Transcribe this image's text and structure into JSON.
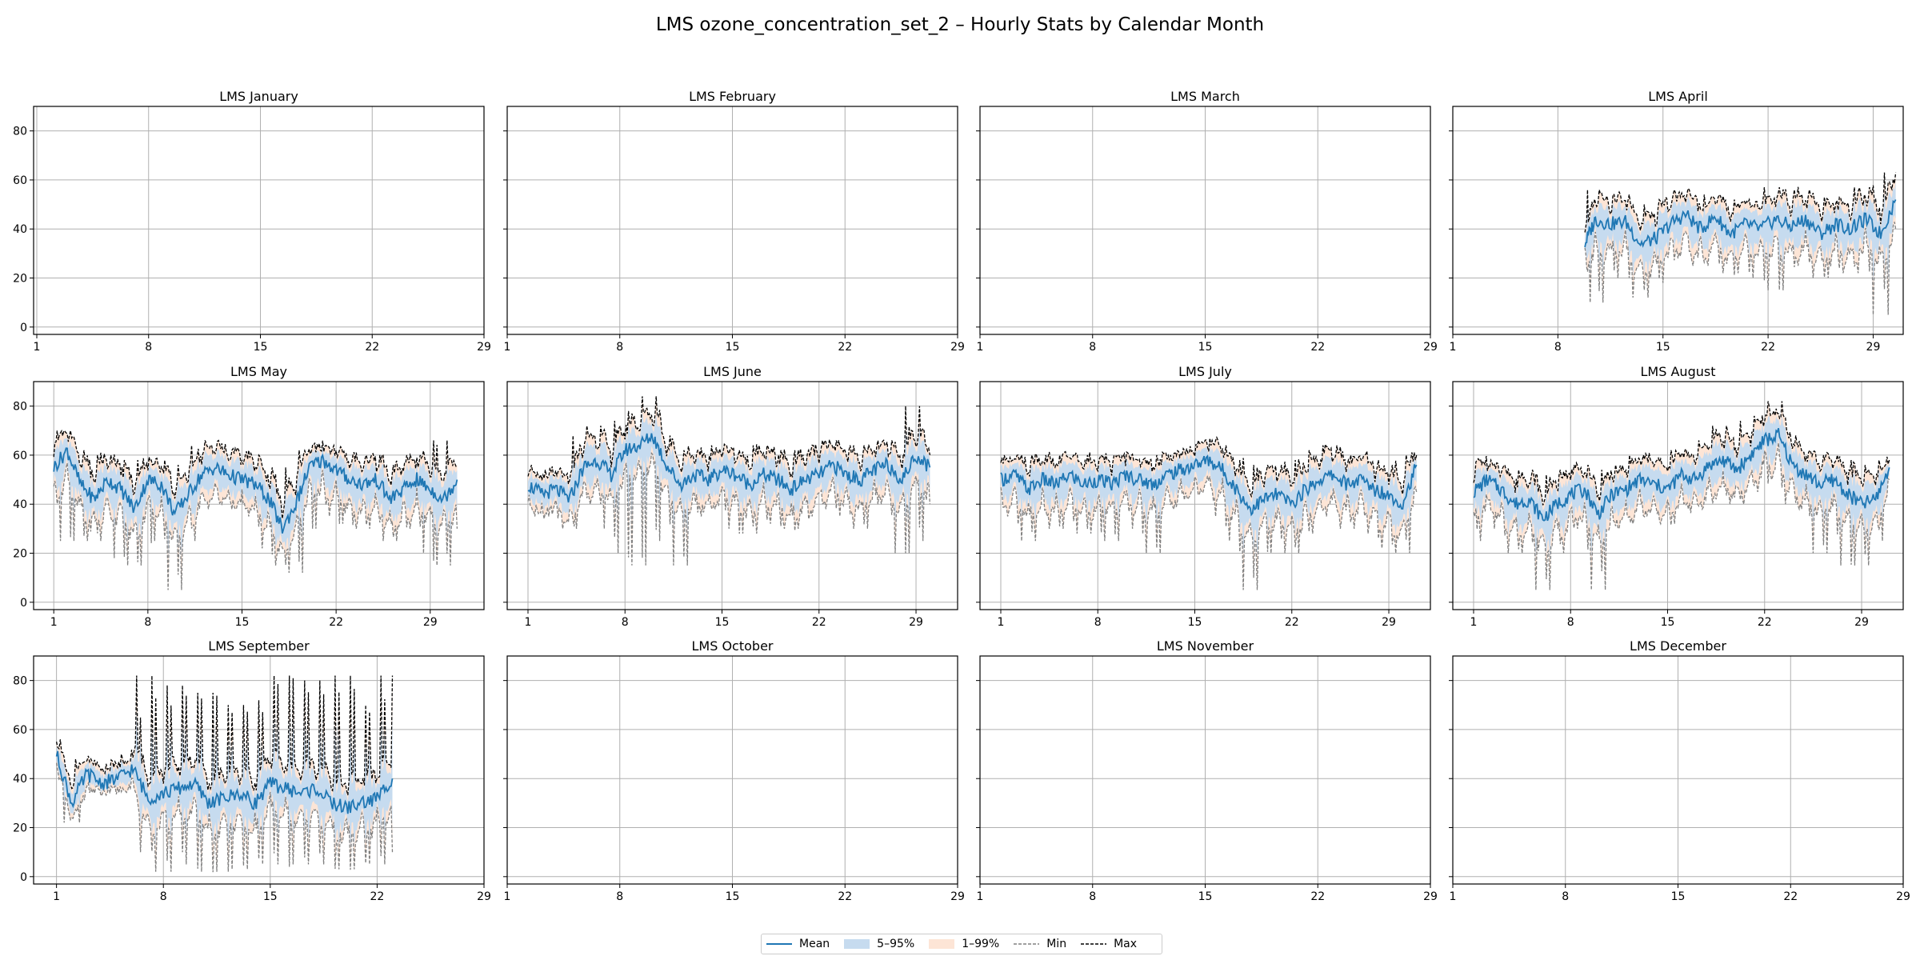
{
  "figure": {
    "title": "LMS ozone_concentration_set_2 – Hourly Stats by Calendar Month"
  },
  "legend": {
    "placement": "bottom-center",
    "entries": [
      {
        "label": "Mean",
        "style": "line",
        "color": "#1f77b4"
      },
      {
        "label": "5–95%",
        "style": "fill",
        "color": "#c6dbef"
      },
      {
        "label": "1–99%",
        "style": "fill",
        "color": "#fde5d6"
      },
      {
        "label": "Min",
        "style": "dashed",
        "color": "#808080"
      },
      {
        "label": "Max",
        "style": "dashed",
        "color": "#000000"
      }
    ]
  },
  "colors": {
    "mean": "#1f77b4",
    "band_5_95": "#c6dbef",
    "band_1_99": "#fde5d6",
    "min": "#808080",
    "max": "#000000",
    "grid": "#b0b0b0"
  },
  "chart_data": [
    {
      "type": "line",
      "title": "LMS January",
      "ylim": [
        -3,
        90
      ],
      "yticks": [
        0,
        20,
        40,
        60,
        80
      ],
      "xticks": [
        1,
        8,
        15,
        22,
        29
      ],
      "grid": true,
      "xlim": [
        0.8,
        29
      ],
      "has_data": false
    },
    {
      "type": "line",
      "title": "LMS February",
      "ylim": [
        -3,
        90
      ],
      "yticks": [
        0,
        20,
        40,
        60,
        80
      ],
      "xticks": [
        1,
        8,
        15,
        22,
        29
      ],
      "grid": true,
      "xlim": [
        1,
        29
      ],
      "has_data": false
    },
    {
      "type": "line",
      "title": "LMS March",
      "ylim": [
        -3,
        90
      ],
      "yticks": [
        0,
        20,
        40,
        60,
        80
      ],
      "xticks": [
        1,
        8,
        15,
        22,
        29
      ],
      "grid": true,
      "xlim": [
        1,
        29
      ],
      "has_data": false
    },
    {
      "type": "line",
      "title": "LMS April",
      "ylim": [
        -3,
        90
      ],
      "yticks": [
        0,
        20,
        40,
        60,
        80
      ],
      "xticks": [
        1,
        8,
        15,
        22,
        29
      ],
      "grid": true,
      "xlim": [
        1,
        31
      ],
      "has_data": true,
      "x": [
        9.8,
        10.5,
        11.5,
        12.5,
        13.5,
        14.5,
        15.5,
        16.5,
        17.5,
        18.5,
        19.5,
        20.5,
        21.5,
        22.5,
        23.5,
        24.5,
        25.5,
        26.5,
        27.5,
        28.5,
        29.5,
        30.5
      ],
      "mean": [
        34,
        44,
        42,
        43,
        34,
        36,
        42,
        46,
        40,
        45,
        38,
        42,
        40,
        44,
        41,
        44,
        38,
        42,
        40,
        44,
        38,
        52
      ],
      "min": [
        30,
        10,
        22,
        20,
        12,
        18,
        28,
        30,
        25,
        30,
        22,
        26,
        20,
        15,
        25,
        28,
        20,
        25,
        22,
        30,
        5,
        40
      ],
      "max": [
        38,
        56,
        52,
        54,
        46,
        50,
        52,
        56,
        50,
        54,
        48,
        52,
        50,
        57,
        54,
        56,
        50,
        53,
        52,
        57,
        54,
        63
      ]
    },
    {
      "type": "line",
      "title": "LMS May",
      "ylim": [
        -3,
        90
      ],
      "yticks": [
        0,
        20,
        40,
        60,
        80
      ],
      "xticks": [
        1,
        8,
        15,
        22,
        29
      ],
      "grid": true,
      "xlim": [
        -0.5,
        33
      ],
      "has_data": true,
      "x": [
        1,
        2,
        3,
        4,
        5,
        6,
        7,
        8,
        9,
        10,
        11,
        12,
        13,
        14,
        15,
        16,
        17,
        18,
        19,
        20,
        21,
        22,
        23,
        24,
        25,
        26,
        27,
        28,
        29,
        30,
        31
      ],
      "mean": [
        55,
        62,
        48,
        42,
        50,
        46,
        38,
        50,
        48,
        36,
        44,
        52,
        55,
        52,
        50,
        48,
        42,
        30,
        40,
        55,
        58,
        54,
        50,
        48,
        50,
        42,
        46,
        50,
        46,
        42,
        50
      ],
      "min": [
        45,
        25,
        30,
        25,
        38,
        18,
        15,
        25,
        30,
        5,
        25,
        38,
        42,
        40,
        38,
        35,
        22,
        15,
        12,
        30,
        40,
        35,
        32,
        30,
        35,
        25,
        30,
        35,
        20,
        15,
        30
      ],
      "max": [
        68,
        70,
        62,
        58,
        60,
        58,
        55,
        58,
        58,
        50,
        56,
        64,
        66,
        62,
        60,
        60,
        55,
        45,
        55,
        62,
        64,
        62,
        60,
        58,
        60,
        55,
        56,
        60,
        60,
        66,
        56
      ]
    },
    {
      "type": "line",
      "title": "LMS June",
      "ylim": [
        -3,
        90
      ],
      "yticks": [
        0,
        20,
        40,
        60,
        80
      ],
      "xticks": [
        1,
        8,
        15,
        22,
        29
      ],
      "grid": true,
      "xlim": [
        -0.5,
        32
      ],
      "has_data": true,
      "x": [
        1,
        2,
        3,
        4,
        5,
        6,
        7,
        8,
        9,
        10,
        11,
        12,
        13,
        14,
        15,
        16,
        17,
        18,
        19,
        20,
        21,
        22,
        23,
        24,
        25,
        26,
        27,
        28,
        29,
        30
      ],
      "mean": [
        48,
        44,
        46,
        42,
        55,
        58,
        52,
        62,
        64,
        68,
        56,
        48,
        52,
        50,
        54,
        52,
        48,
        52,
        50,
        46,
        50,
        52,
        56,
        52,
        50,
        54,
        56,
        50,
        60,
        55
      ],
      "min": [
        42,
        35,
        38,
        30,
        40,
        42,
        30,
        20,
        15,
        25,
        35,
        15,
        35,
        38,
        40,
        30,
        28,
        35,
        32,
        30,
        35,
        38,
        40,
        35,
        30,
        40,
        42,
        20,
        25,
        40
      ],
      "max": [
        56,
        52,
        54,
        52,
        68,
        72,
        64,
        74,
        78,
        84,
        68,
        62,
        62,
        60,
        64,
        62,
        60,
        64,
        62,
        58,
        62,
        62,
        66,
        64,
        62,
        64,
        66,
        60,
        80,
        60
      ]
    },
    {
      "type": "line",
      "title": "LMS July",
      "ylim": [
        -3,
        90
      ],
      "yticks": [
        0,
        20,
        40,
        60,
        80
      ],
      "xticks": [
        1,
        8,
        15,
        22,
        29
      ],
      "grid": true,
      "xlim": [
        -0.5,
        32
      ],
      "has_data": true,
      "x": [
        1,
        2,
        3,
        4,
        5,
        6,
        7,
        8,
        9,
        10,
        11,
        12,
        13,
        14,
        15,
        16,
        17,
        18,
        19,
        20,
        21,
        22,
        23,
        24,
        25,
        26,
        27,
        28,
        29,
        30,
        31
      ],
      "mean": [
        50,
        52,
        46,
        50,
        48,
        52,
        48,
        50,
        48,
        52,
        50,
        48,
        52,
        54,
        56,
        58,
        54,
        46,
        38,
        42,
        44,
        40,
        46,
        50,
        52,
        48,
        50,
        46,
        44,
        40,
        56
      ],
      "min": [
        40,
        35,
        25,
        38,
        30,
        38,
        28,
        30,
        25,
        38,
        30,
        20,
        38,
        42,
        45,
        48,
        35,
        25,
        5,
        20,
        25,
        20,
        28,
        35,
        38,
        30,
        35,
        28,
        22,
        20,
        45
      ],
      "max": [
        58,
        60,
        58,
        60,
        58,
        60,
        58,
        60,
        58,
        60,
        58,
        56,
        60,
        60,
        62,
        66,
        64,
        58,
        55,
        56,
        56,
        54,
        58,
        62,
        64,
        58,
        60,
        58,
        56,
        56,
        60
      ]
    },
    {
      "type": "line",
      "title": "LMS August",
      "ylim": [
        -3,
        90
      ],
      "yticks": [
        0,
        20,
        40,
        60,
        80
      ],
      "xticks": [
        1,
        8,
        15,
        22,
        29
      ],
      "grid": true,
      "xlim": [
        -0.5,
        32
      ],
      "has_data": true,
      "x": [
        1,
        2,
        3,
        4,
        5,
        6,
        7,
        8,
        9,
        10,
        11,
        12,
        13,
        14,
        15,
        16,
        17,
        18,
        19,
        20,
        21,
        22,
        23,
        24,
        25,
        26,
        27,
        28,
        29,
        30,
        31
      ],
      "mean": [
        45,
        50,
        46,
        40,
        42,
        34,
        40,
        44,
        46,
        36,
        44,
        46,
        50,
        48,
        46,
        52,
        50,
        56,
        58,
        54,
        60,
        66,
        68,
        56,
        52,
        48,
        50,
        44,
        40,
        42,
        55
      ],
      "min": [
        25,
        38,
        30,
        20,
        28,
        5,
        20,
        30,
        30,
        5,
        30,
        32,
        38,
        35,
        32,
        40,
        38,
        42,
        45,
        40,
        45,
        50,
        50,
        40,
        38,
        20,
        35,
        15,
        15,
        25,
        50
      ],
      "max": [
        58,
        58,
        56,
        52,
        54,
        50,
        52,
        54,
        56,
        50,
        54,
        56,
        60,
        58,
        56,
        62,
        60,
        66,
        72,
        64,
        74,
        76,
        82,
        68,
        62,
        58,
        60,
        58,
        56,
        54,
        58
      ]
    },
    {
      "type": "line",
      "title": "LMS September",
      "ylim": [
        -3,
        90
      ],
      "yticks": [
        0,
        20,
        40,
        60,
        80
      ],
      "xticks": [
        1,
        8,
        15,
        22,
        29
      ],
      "grid": true,
      "xlim": [
        -0.5,
        29
      ],
      "has_data": true,
      "x": [
        1,
        2,
        3,
        4,
        5,
        6,
        7,
        8,
        9,
        10,
        11,
        12,
        13,
        14,
        15,
        16,
        17,
        18,
        19,
        20,
        21,
        22,
        23
      ],
      "mean": [
        50,
        30,
        42,
        38,
        40,
        44,
        32,
        34,
        36,
        38,
        30,
        32,
        34,
        30,
        38,
        36,
        34,
        36,
        30,
        28,
        30,
        32,
        40
      ],
      "min": [
        45,
        22,
        36,
        34,
        35,
        38,
        10,
        2,
        10,
        5,
        2,
        5,
        3,
        5,
        10,
        5,
        5,
        8,
        5,
        3,
        5,
        5,
        10
      ],
      "max": [
        56,
        40,
        48,
        44,
        46,
        50,
        82,
        62,
        78,
        70,
        75,
        68,
        70,
        62,
        72,
        82,
        75,
        80,
        70,
        82,
        70,
        65,
        82
      ]
    },
    {
      "type": "line",
      "title": "LMS October",
      "ylim": [
        -3,
        90
      ],
      "yticks": [
        0,
        20,
        40,
        60,
        80
      ],
      "xticks": [
        1,
        8,
        15,
        22,
        29
      ],
      "grid": true,
      "xlim": [
        1,
        29
      ],
      "has_data": false
    },
    {
      "type": "line",
      "title": "LMS November",
      "ylim": [
        -3,
        90
      ],
      "yticks": [
        0,
        20,
        40,
        60,
        80
      ],
      "xticks": [
        1,
        8,
        15,
        22,
        29
      ],
      "grid": true,
      "xlim": [
        1,
        29
      ],
      "has_data": false
    },
    {
      "type": "line",
      "title": "LMS December",
      "ylim": [
        -3,
        90
      ],
      "yticks": [
        0,
        20,
        40,
        60,
        80
      ],
      "xticks": [
        1,
        8,
        15,
        22,
        29
      ],
      "grid": true,
      "xlim": [
        1,
        29
      ],
      "has_data": false
    }
  ]
}
